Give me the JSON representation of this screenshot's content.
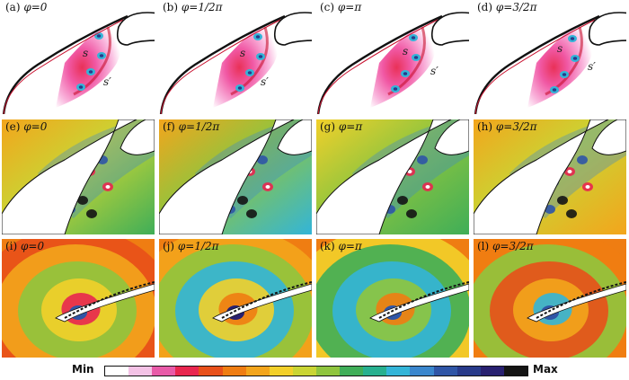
{
  "rows": [
    {
      "kind": "slat",
      "panels": [
        {
          "label": "(a) ",
          "phi": "φ=0",
          "annot1": "s",
          "annot2": "s′"
        },
        {
          "label": "(b) ",
          "phi": "φ=1/2π",
          "annot1": "s",
          "annot2": "s′"
        },
        {
          "label": "(c) ",
          "phi": "φ=π",
          "annot1": "s",
          "annot2": "s′"
        },
        {
          "label": "(d) ",
          "phi": "φ=3/2π",
          "annot1": "s",
          "annot2": "s′"
        }
      ]
    },
    {
      "kind": "vortex",
      "panels": [
        {
          "label": "(e) ",
          "phi": "φ=0"
        },
        {
          "label": "(f) ",
          "phi": "φ=1/2π"
        },
        {
          "label": "(g) ",
          "phi": "φ=π"
        },
        {
          "label": "(h) ",
          "phi": "φ=3/2π"
        }
      ]
    },
    {
      "kind": "acoustic",
      "panels": [
        {
          "label": "(i) ",
          "phi": "φ=0"
        },
        {
          "label": "(j) ",
          "phi": "φ=1/2π"
        },
        {
          "label": "(k) ",
          "phi": "φ=π"
        },
        {
          "label": "(l) ",
          "phi": "φ=3/2π"
        }
      ]
    }
  ],
  "colorbar": {
    "min_label": "Min",
    "max_label": "Max",
    "colors": [
      "#ffffff",
      "#f4c2e6",
      "#e85aa8",
      "#e8264f",
      "#e8501a",
      "#ef7d12",
      "#f3a51c",
      "#f2d02a",
      "#c9d534",
      "#8fc53e",
      "#3fae58",
      "#27b08f",
      "#33b5d8",
      "#3a86cd",
      "#2f55a6",
      "#283a8a",
      "#282070",
      "#141414"
    ]
  }
}
